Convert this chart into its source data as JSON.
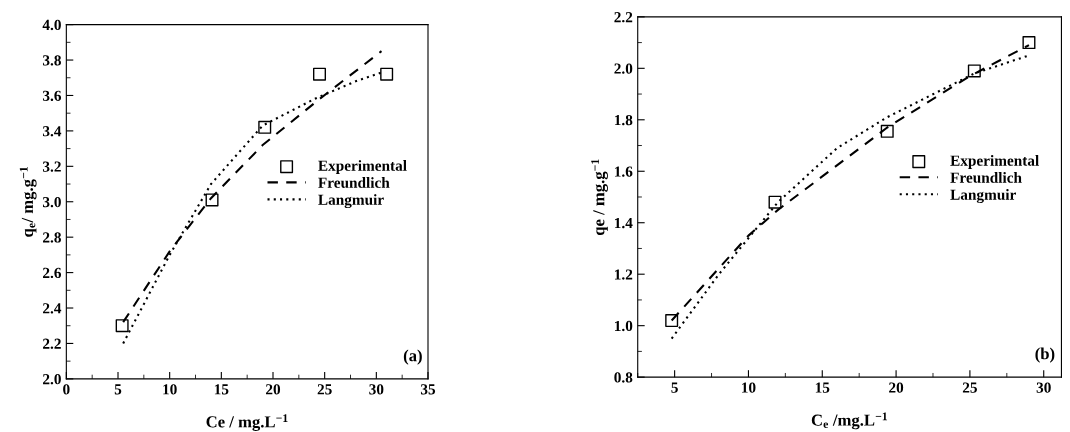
{
  "chart_data": [
    {
      "type": "scatter",
      "xlabel": "Ce / mg.L$^{−1}$",
      "ylabel": "q$_{e}$/ mg.g$^{−1}$",
      "xlim": [
        0,
        35
      ],
      "ylim": [
        2.0,
        4.0
      ],
      "xticks": [
        0,
        5,
        10,
        15,
        20,
        25,
        30,
        35
      ],
      "yticks": [
        {
          "value": 2.0,
          "label": "2.0"
        },
        2.2,
        2.4,
        2.6,
        2.8,
        {
          "value": 3.0,
          "label": "3.0"
        },
        3.2,
        3.4,
        3.6,
        3.8,
        {
          "value": 4.0,
          "label": "4.0"
        }
      ],
      "legend": "center right",
      "grid": false,
      "annotations": [
        "(a)"
      ],
      "series": [
        {
          "name": "Experimental",
          "marker": "square",
          "color": "#000000",
          "x": [
            5.4,
            14.1,
            19.2,
            24.5,
            31.0
          ],
          "values": [
            2.3,
            3.01,
            3.42,
            3.72,
            3.72
          ]
        },
        {
          "name": "Freundlich",
          "type": "line",
          "line_style": "dashed",
          "color": "#000000",
          "x": [
            5.5,
            10,
            14,
            19,
            24.5,
            30.5
          ],
          "values": [
            2.32,
            2.72,
            3.02,
            3.32,
            3.58,
            3.85
          ]
        },
        {
          "name": "Langmuir",
          "type": "line",
          "line_style": "dotted",
          "color": "#000000",
          "x": [
            5.5,
            10,
            14,
            19,
            24,
            28,
            30.5
          ],
          "values": [
            2.2,
            2.7,
            3.1,
            3.43,
            3.58,
            3.68,
            3.73
          ]
        }
      ]
    },
    {
      "type": "scatter",
      "xlabel": "C$_{e}$ /mg.L$^{−1}$",
      "ylabel": "qe / mg.g$^{−1}$",
      "xlim": [
        2.5,
        31.2
      ],
      "ylim": [
        0.8,
        2.2
      ],
      "xticks": [
        5,
        10,
        15,
        20,
        25,
        30
      ],
      "yticks": [
        0.8,
        {
          "value": 1.0,
          "label": "1.0"
        },
        1.2,
        1.4,
        1.6,
        1.8,
        {
          "value": 2.0,
          "label": "2.0"
        },
        2.2
      ],
      "legend": "center right",
      "grid": false,
      "annotations": [
        "(b)"
      ],
      "series": [
        {
          "name": "Experimental",
          "marker": "square",
          "color": "#000000",
          "x": [
            4.8,
            11.8,
            19.4,
            25.3,
            29.0
          ],
          "values": [
            1.02,
            1.48,
            1.755,
            1.99,
            2.1
          ]
        },
        {
          "name": "Freundlich",
          "type": "line",
          "line_style": "dashed",
          "color": "#000000",
          "x": [
            4.8,
            10,
            12,
            19.4,
            25,
            29
          ],
          "values": [
            1.02,
            1.35,
            1.45,
            1.77,
            1.97,
            2.09
          ]
        },
        {
          "name": "Langmuir",
          "type": "line",
          "line_style": "dotted",
          "color": "#000000",
          "x": [
            4.8,
            8,
            12,
            16,
            19.4,
            25.3,
            29
          ],
          "values": [
            0.95,
            1.2,
            1.48,
            1.69,
            1.81,
            1.98,
            2.05
          ]
        }
      ]
    }
  ]
}
